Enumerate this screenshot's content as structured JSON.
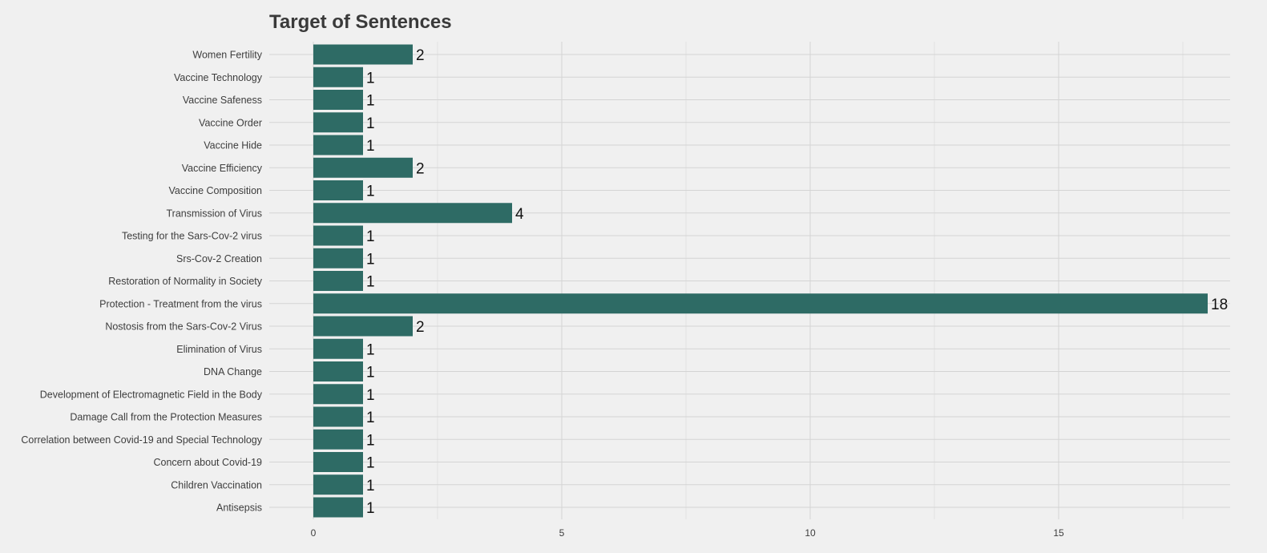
{
  "chart_data": {
    "type": "bar",
    "orientation": "horizontal",
    "title": "Target of Sentences",
    "xlabel": "",
    "ylabel": "",
    "xlim": [
      0,
      19
    ],
    "x_ticks": [
      0,
      5,
      10,
      15
    ],
    "grid": true,
    "legend": "none",
    "bar_color": "#2e6b65",
    "categories": [
      "Women Fertility",
      "Vaccine Technology",
      "Vaccine Safeness",
      "Vaccine Order",
      "Vaccine Hide",
      "Vaccine Efficiency",
      "Vaccine Composition",
      "Transmission of Virus",
      "Testing for the Sars-Cov-2 virus",
      "Srs-Cov-2 Creation",
      "Restoration of Normality in Society",
      "Protection - Treatment from the virus",
      "Nostosis from the Sars-Cov-2 Virus",
      "Elimination of Virus",
      "DNA Change",
      "Development of Electromagnetic Field in the Body",
      "Damage Call from the Protection Measures",
      "Correlation between Covid-19 and Special Technology",
      "Concern about Covid-19",
      "Children Vaccination",
      "Antisepsis"
    ],
    "values": [
      2,
      1,
      1,
      1,
      1,
      2,
      1,
      4,
      1,
      1,
      1,
      18,
      2,
      1,
      1,
      1,
      1,
      1,
      1,
      1,
      1
    ],
    "data_labels": [
      "2",
      "1",
      "1",
      "1",
      "1",
      "2",
      "1",
      "4",
      "1",
      "1",
      "1",
      "18",
      "2",
      "1",
      "1",
      "1",
      "1",
      "1",
      "1",
      "1",
      "1"
    ]
  }
}
